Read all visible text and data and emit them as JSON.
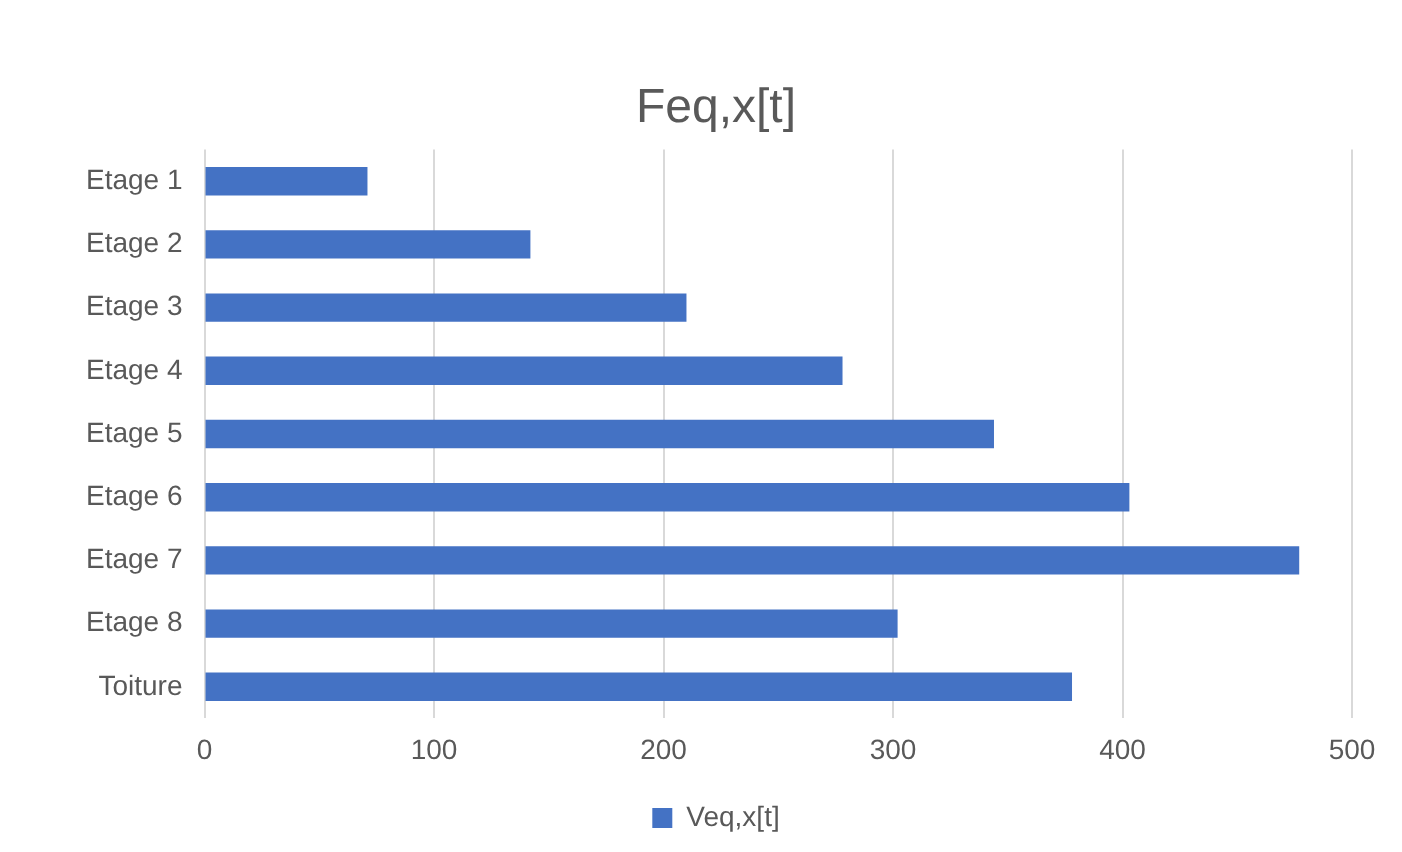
{
  "chart_data": {
    "type": "bar",
    "orientation": "horizontal",
    "title": "Feq,x[t]",
    "categories": [
      "Etage 1",
      "Etage 2",
      "Etage 3",
      "Etage 4",
      "Etage 5",
      "Etage 6",
      "Etage 7",
      "Etage 8",
      "Toiture"
    ],
    "series": [
      {
        "name": "Veq,x[t]",
        "color": "#4472c4",
        "values": [
          71,
          142,
          210,
          278,
          344,
          403,
          477,
          302,
          378
        ]
      }
    ],
    "xlim": [
      0,
      500
    ],
    "xticks": [
      0,
      100,
      200,
      300,
      400,
      500
    ],
    "grid": "x",
    "legend": "bottom"
  }
}
